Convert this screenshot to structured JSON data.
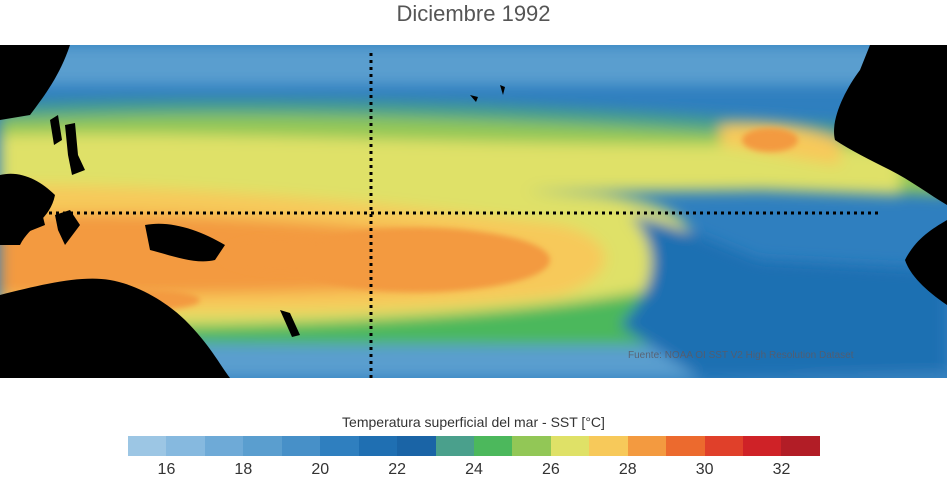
{
  "title": "Diciembre 1992",
  "credit": "Fuente: NOAA OI SST V2 High Resolution Dataset",
  "legend": {
    "title": "Temperatura superficial del mar - SST  [°C]",
    "min": 15,
    "max": 33,
    "ticks": [
      "16",
      "18",
      "20",
      "22",
      "24",
      "26",
      "28",
      "30",
      "32"
    ],
    "colors": [
      "#9cc6e4",
      "#86b9df",
      "#6eaad7",
      "#5a9ecf",
      "#4790c8",
      "#2f7fbf",
      "#1f6fb2",
      "#1a64a6",
      "#4aa08c",
      "#4cb85c",
      "#92c756",
      "#dfe167",
      "#f7c95a",
      "#f39a40",
      "#ec6a2e",
      "#e0402a",
      "#cf2227",
      "#b21d26"
    ]
  },
  "map": {
    "background_color": "#000000",
    "warm_pool_color": "#f39a40",
    "cold_tongue_color": "#2f7fbf"
  }
}
